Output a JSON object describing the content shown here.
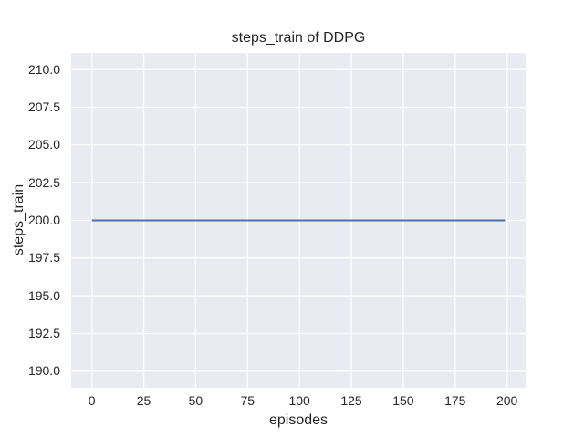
{
  "figure": {
    "title": "steps_train of DDPG",
    "xlabel": "episodes",
    "ylabel": "steps_train"
  },
  "chart_data": {
    "type": "line",
    "title": "steps_train of DDPG",
    "xlabel": "episodes",
    "ylabel": "steps_train",
    "xlim": [
      -9.95,
      208.95
    ],
    "ylim": [
      188.9,
      211.1
    ],
    "x_ticks": [
      0,
      25,
      50,
      75,
      100,
      125,
      150,
      175,
      200
    ],
    "x_tick_labels": [
      "0",
      "25",
      "50",
      "75",
      "100",
      "125",
      "150",
      "175",
      "200"
    ],
    "y_ticks": [
      190.0,
      192.5,
      195.0,
      197.5,
      200.0,
      202.5,
      205.0,
      207.5,
      210.0
    ],
    "y_tick_labels": [
      "190.0",
      "192.5",
      "195.0",
      "197.5",
      "200.0",
      "202.5",
      "205.0",
      "207.5",
      "210.0"
    ],
    "series": [
      {
        "name": "steps_train",
        "x": [
          0,
          199
        ],
        "values": [
          200,
          200
        ],
        "color": "#4C72B0",
        "line_width": 2.1
      }
    ],
    "grid": true,
    "legend": false,
    "styles": {
      "plot_background": "#EAEAF2",
      "grid_color": "#FFFFFF",
      "text_color": "#262626",
      "figure_background": "#FFFFFF"
    }
  }
}
